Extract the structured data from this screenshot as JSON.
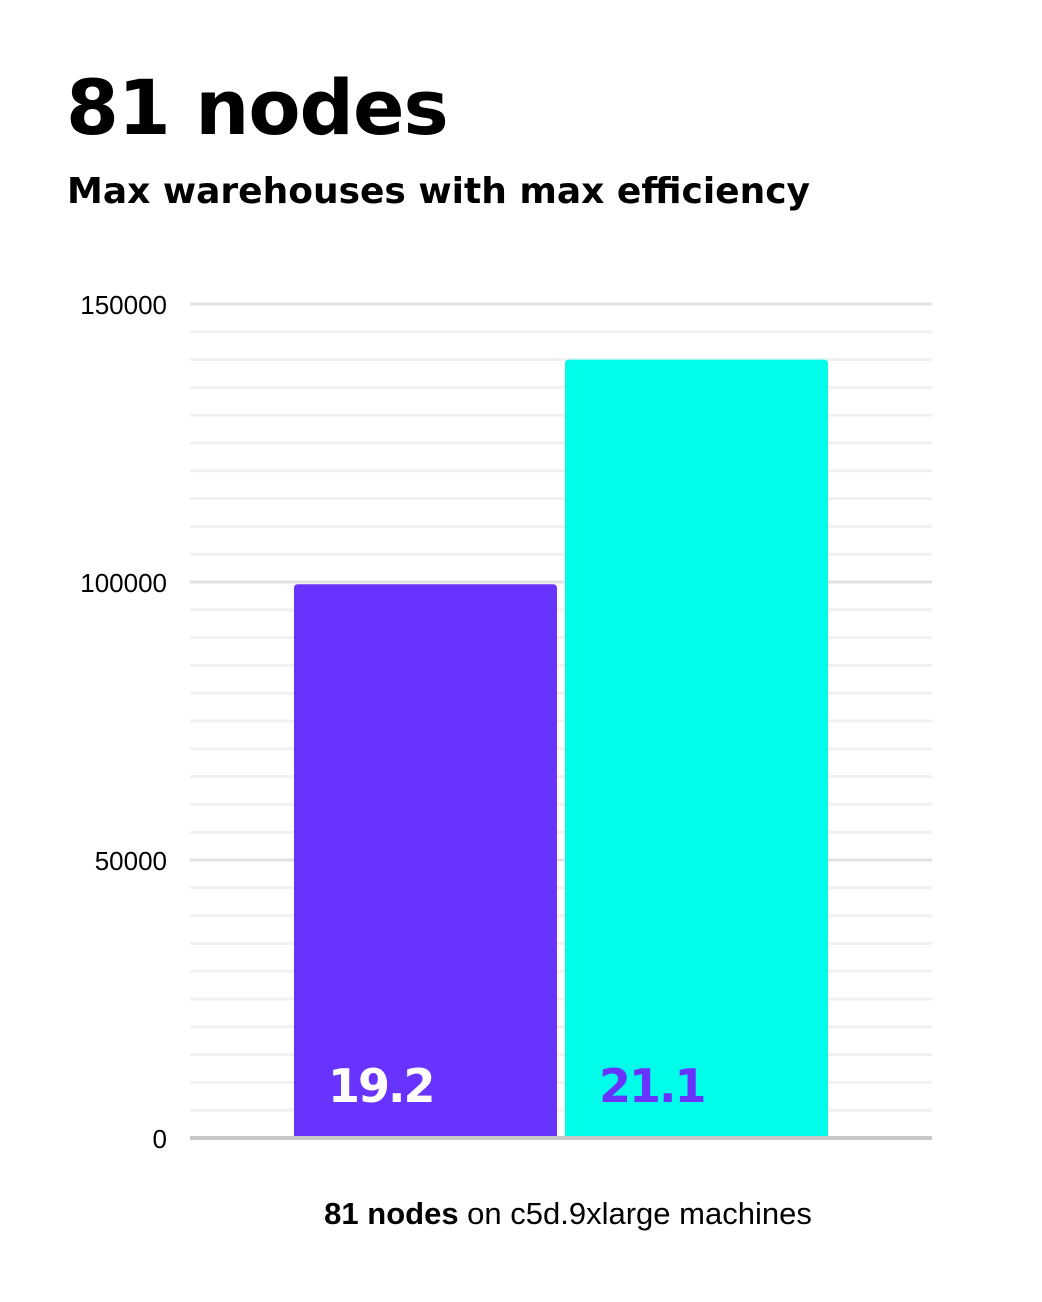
{
  "chart_data": {
    "type": "bar",
    "title": "81 nodes",
    "subtitle": "Max warehouses with max efficiency",
    "xlabel_bold": "81 nodes",
    "xlabel_rest": " on c5d.9xlarge machines",
    "ylabel": "",
    "ylim": [
      0,
      150000
    ],
    "yticks": [
      0,
      50000,
      100000,
      150000
    ],
    "minor_step": 5000,
    "grid": true,
    "bars": [
      {
        "value": 99600,
        "label": "19.2",
        "color": "#6933ff",
        "label_color": "#ffffff"
      },
      {
        "value": 140000,
        "label": "21.1",
        "color": "#00fdea",
        "label_color": "#6933ff"
      }
    ]
  }
}
